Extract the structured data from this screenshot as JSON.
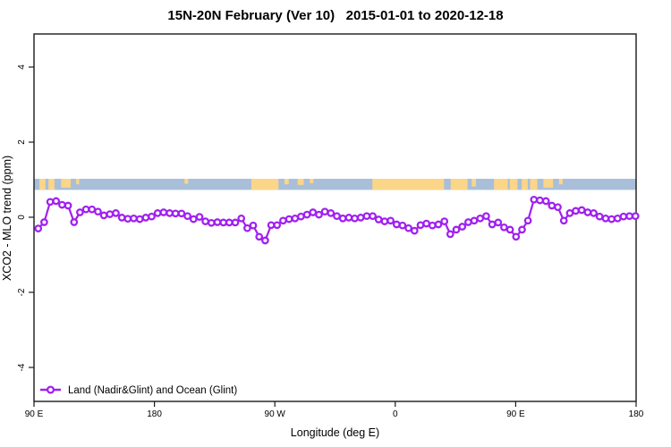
{
  "chart_data": {
    "type": "line",
    "title": "15N-20N February (Ver 10)   2015-01-01 to 2020-12-18",
    "xlabel": "Longitude (deg E)",
    "ylabel": "XCO2 - MLO trend (ppm)",
    "ylim": [
      -4.9,
      4.9
    ],
    "yticks": [
      4,
      2,
      0,
      -2,
      -4
    ],
    "ytick_labels": [
      "4",
      "2",
      "0",
      "-2",
      "-4"
    ],
    "xtick_labels": [
      "90 E",
      "180",
      "90 W",
      "0",
      "90 E",
      "180"
    ],
    "grid": "off",
    "legend": {
      "position": "bottom-left",
      "label": "Land (Nadir&Glint) and Ocean (Glint)",
      "marker": "open-circle",
      "color": "#A020F0"
    },
    "series": [
      {
        "name": "Land (Nadir&Glint) and Ocean (Glint)",
        "color": "#A020F0",
        "marker": "open-circle",
        "x_spacing": "evenly spaced across full longitude axis",
        "values": [
          -0.3,
          -0.13,
          0.41,
          0.43,
          0.33,
          0.31,
          -0.13,
          0.13,
          0.21,
          0.21,
          0.15,
          0.05,
          0.08,
          0.11,
          -0.01,
          -0.04,
          -0.03,
          -0.05,
          -0.01,
          0.02,
          0.11,
          0.13,
          0.11,
          0.1,
          0.1,
          0.03,
          -0.05,
          0.01,
          -0.11,
          -0.15,
          -0.13,
          -0.14,
          -0.14,
          -0.14,
          -0.03,
          -0.29,
          -0.22,
          -0.52,
          -0.62,
          -0.21,
          -0.21,
          -0.09,
          -0.05,
          -0.03,
          0.02,
          0.07,
          0.13,
          0.07,
          0.15,
          0.11,
          0.03,
          -0.03,
          -0.01,
          -0.03,
          -0.01,
          0.03,
          0.03,
          -0.06,
          -0.11,
          -0.09,
          -0.19,
          -0.22,
          -0.29,
          -0.36,
          -0.21,
          -0.17,
          -0.22,
          -0.19,
          -0.11,
          -0.45,
          -0.33,
          -0.25,
          -0.13,
          -0.09,
          -0.03,
          0.03,
          -0.19,
          -0.14,
          -0.27,
          -0.33,
          -0.52,
          -0.33,
          -0.09,
          0.47,
          0.45,
          0.43,
          0.31,
          0.27,
          -0.09,
          0.11,
          0.17,
          0.19,
          0.13,
          0.11,
          0.02,
          -0.03,
          -0.05,
          -0.03,
          0.02,
          0.03,
          0.03
        ]
      }
    ],
    "map_band": {
      "description": "world map strip for 15N-20N latitude belt drawn across the plot",
      "y_range_ppm": [
        0.74,
        1.02
      ],
      "ocean_color": "#a9bfd9",
      "land_color": "#fbd588",
      "land_segments": [
        [
          0.009,
          0.019,
          1.0
        ],
        [
          0.024,
          0.034,
          1.0
        ],
        [
          0.045,
          0.061,
          0.8
        ],
        [
          0.07,
          0.075,
          0.5
        ],
        [
          0.25,
          0.256,
          0.45
        ],
        [
          0.361,
          0.406,
          1.0
        ],
        [
          0.416,
          0.423,
          0.5
        ],
        [
          0.438,
          0.448,
          0.55
        ],
        [
          0.458,
          0.464,
          0.4
        ],
        [
          0.562,
          0.681,
          1.0
        ],
        [
          0.692,
          0.72,
          1.0
        ],
        [
          0.727,
          0.734,
          0.7
        ],
        [
          0.764,
          0.787,
          1.0
        ],
        [
          0.79,
          0.803,
          1.0
        ],
        [
          0.81,
          0.82,
          1.0
        ],
        [
          0.824,
          0.836,
          1.0
        ],
        [
          0.846,
          0.862,
          0.8
        ],
        [
          0.872,
          0.878,
          0.5
        ]
      ]
    }
  }
}
